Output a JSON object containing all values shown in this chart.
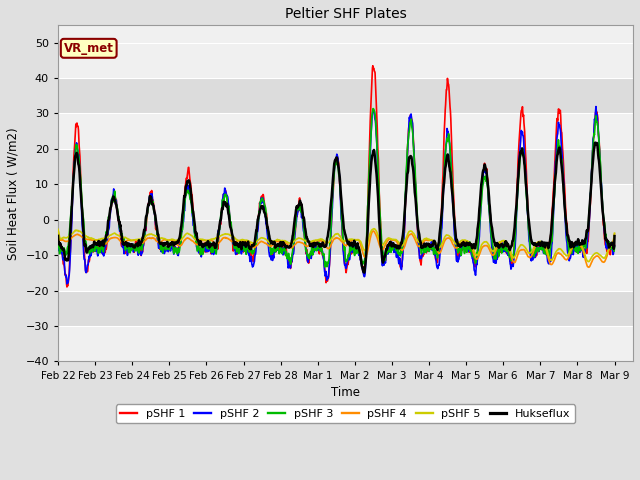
{
  "title": "Peltier SHF Plates",
  "xlabel": "Time",
  "ylabel": "Soil Heat Flux ( W/m2)",
  "ylim": [
    -40,
    55
  ],
  "yticks": [
    -40,
    -30,
    -20,
    -10,
    0,
    10,
    20,
    30,
    40,
    50
  ],
  "xlim_days": [
    0.0,
    15.5
  ],
  "annotation_text": "VR_met",
  "annotation_color": "#8B0000",
  "annotation_bg": "#FFFFC0",
  "legend_entries": [
    "pSHF 1",
    "pSHF 2",
    "pSHF 3",
    "pSHF 4",
    "pSHF 5",
    "Hukseflux"
  ],
  "line_colors": [
    "#FF0000",
    "#0000FF",
    "#00BB00",
    "#FF8C00",
    "#CCCC00",
    "#000000"
  ],
  "line_widths": [
    1.2,
    1.2,
    1.2,
    1.2,
    1.2,
    1.8
  ],
  "grid_color": "#CCCCCC",
  "bg_color": "#E0E0E0",
  "plot_bg_light": "#F0F0F0",
  "plot_bg_dark": "#DCDCDC",
  "x_tick_labels": [
    "Feb 22",
    "Feb 23",
    "Feb 24",
    "Feb 25",
    "Feb 26",
    "Feb 27",
    "Feb 28",
    "Mar 1",
    "Mar 2",
    "Mar 3",
    "Mar 4",
    "Mar 5",
    "Mar 6",
    "Mar 7",
    "Mar 8",
    "Mar 9"
  ],
  "x_tick_positions": [
    0,
    1,
    2,
    3,
    4,
    5,
    6,
    7,
    8,
    9,
    10,
    11,
    12,
    13,
    14,
    15
  ],
  "figsize": [
    6.4,
    4.8
  ],
  "dpi": 100
}
